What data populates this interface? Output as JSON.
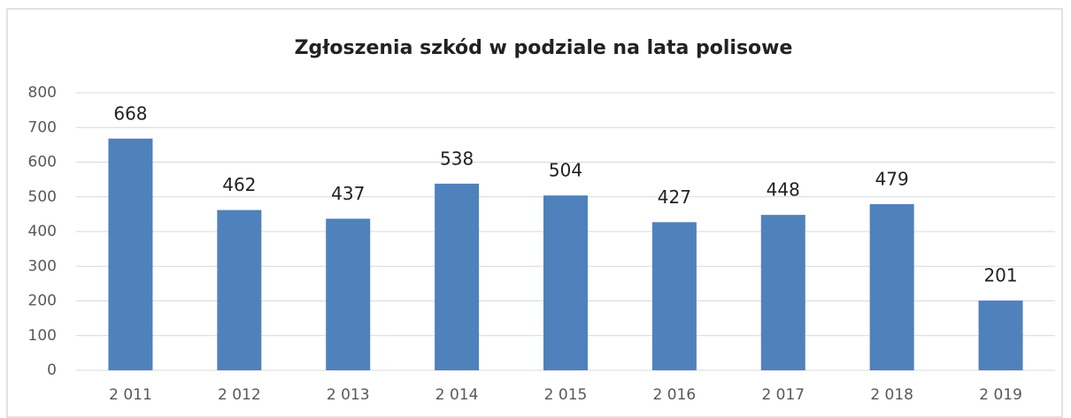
{
  "chart_data": {
    "type": "bar",
    "title": "Zgłoszenia szkód w podziale na lata polisowe",
    "categories": [
      "2 011",
      "2 012",
      "2 013",
      "2 014",
      "2 015",
      "2 016",
      "2 017",
      "2 018",
      "2 019"
    ],
    "values": [
      668,
      462,
      437,
      538,
      504,
      427,
      448,
      479,
      201
    ],
    "color": "#4f81bd",
    "ylim": [
      0,
      800
    ],
    "yticks": [
      0,
      100,
      200,
      300,
      400,
      500,
      600,
      700,
      800
    ],
    "grid": true
  }
}
